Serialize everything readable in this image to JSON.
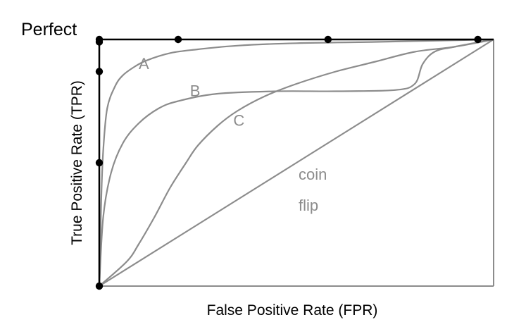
{
  "chart_data": {
    "type": "line",
    "title": "",
    "xlabel": "False Positive Rate (FPR)",
    "ylabel": "True Positive Rate (TPR)",
    "xlim": [
      0,
      1
    ],
    "ylim": [
      0,
      1
    ],
    "grid": false,
    "annotations": {
      "perfect": "Perfect",
      "coin_flip_line1": "coin",
      "coin_flip_line2": "flip"
    },
    "series": [
      {
        "name": "A",
        "x": [
          0,
          0.005,
          0.01,
          0.02,
          0.04,
          0.06,
          0.09,
          0.12,
          0.18,
          0.25,
          0.35,
          0.5,
          0.7,
          0.85,
          1.0
        ],
        "y": [
          0,
          0.35,
          0.55,
          0.72,
          0.81,
          0.855,
          0.89,
          0.915,
          0.945,
          0.96,
          0.975,
          0.985,
          0.99,
          0.995,
          1.0
        ]
      },
      {
        "name": "B",
        "x": [
          0,
          0.01,
          0.03,
          0.06,
          0.1,
          0.15,
          0.2,
          0.3,
          0.45,
          0.6,
          0.75,
          0.8,
          0.82,
          0.85,
          0.9,
          1.0
        ],
        "y": [
          0,
          0.28,
          0.46,
          0.58,
          0.66,
          0.72,
          0.75,
          0.78,
          0.79,
          0.79,
          0.795,
          0.82,
          0.9,
          0.95,
          0.97,
          1.0
        ]
      },
      {
        "name": "C",
        "x": [
          0,
          0.07,
          0.1,
          0.14,
          0.18,
          0.22,
          0.25,
          0.3,
          0.35,
          0.42,
          0.5,
          0.6,
          0.7,
          0.8,
          0.9,
          1.0
        ],
        "y": [
          0,
          0.1,
          0.17,
          0.28,
          0.4,
          0.5,
          0.57,
          0.65,
          0.71,
          0.77,
          0.82,
          0.87,
          0.91,
          0.95,
          0.97,
          1.0
        ]
      },
      {
        "name": "coin flip",
        "x": [
          0,
          1
        ],
        "y": [
          0,
          1
        ]
      }
    ],
    "perfect_points": [
      {
        "x": 0,
        "y": 0
      },
      {
        "x": 0,
        "y": 0.5
      },
      {
        "x": 0,
        "y": 1.0
      },
      {
        "x": 0,
        "y": 0.99
      },
      {
        "x": 0,
        "y": 0.87
      },
      {
        "x": 0.2,
        "y": 1.0
      },
      {
        "x": 0.58,
        "y": 1.0
      },
      {
        "x": 0.96,
        "y": 1.0
      }
    ],
    "curve_labels": {
      "A": {
        "x": 0.1,
        "y": 0.88
      },
      "B": {
        "x": 0.23,
        "y": 0.77
      },
      "C": {
        "x": 0.34,
        "y": 0.65
      }
    },
    "colors": {
      "curves": "#8c8c8c",
      "perfect": "#000000"
    }
  }
}
